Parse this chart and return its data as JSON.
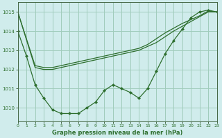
{
  "title": "Graphe pression niveau de la mer (hPa)",
  "background_color": "#d0ecec",
  "grid_color": "#a0ccbb",
  "line_color": "#2d6e2d",
  "xlim": [
    0,
    23
  ],
  "ylim": [
    1009.3,
    1015.5
  ],
  "yticks": [
    1010,
    1011,
    1012,
    1013,
    1014,
    1015
  ],
  "xticks": [
    0,
    1,
    2,
    3,
    4,
    5,
    6,
    7,
    8,
    9,
    10,
    11,
    12,
    13,
    14,
    15,
    16,
    17,
    18,
    19,
    20,
    21,
    22,
    23
  ],
  "series1_x": [
    0,
    1,
    2,
    3,
    4,
    5,
    6,
    7,
    8,
    9,
    10,
    11,
    12,
    13,
    14,
    15,
    16,
    17,
    18,
    19,
    20,
    21,
    22,
    23
  ],
  "series1_y": [
    1014.0,
    1012.7,
    1011.2,
    1010.5,
    1009.9,
    1009.7,
    1009.7,
    1009.7,
    1010.0,
    1010.3,
    1010.9,
    1011.2,
    1011.0,
    1010.8,
    1010.5,
    1011.0,
    1011.9,
    1012.8,
    1013.5,
    1014.1,
    1014.7,
    1015.0,
    1015.1,
    1015.0
  ],
  "series2_x": [
    0,
    2,
    3,
    4,
    5,
    6,
    7,
    8,
    9,
    10,
    11,
    12,
    13,
    14,
    15,
    16,
    17,
    18,
    19,
    20,
    21,
    22,
    23
  ],
  "series2_y": [
    1015.0,
    1012.1,
    1012.0,
    1012.0,
    1012.1,
    1012.2,
    1012.3,
    1012.4,
    1012.5,
    1012.6,
    1012.7,
    1012.8,
    1012.9,
    1013.0,
    1013.2,
    1013.4,
    1013.7,
    1014.0,
    1014.25,
    1014.5,
    1014.75,
    1015.0,
    1015.0
  ],
  "series3_x": [
    0,
    2,
    3,
    4,
    5,
    6,
    7,
    8,
    9,
    10,
    11,
    12,
    13,
    14,
    15,
    16,
    17,
    18,
    19,
    20,
    21,
    22,
    23
  ],
  "series3_y": [
    1015.0,
    1012.2,
    1012.1,
    1012.1,
    1012.2,
    1012.3,
    1012.4,
    1012.5,
    1012.6,
    1012.7,
    1012.8,
    1012.9,
    1013.0,
    1013.1,
    1013.3,
    1013.6,
    1013.9,
    1014.15,
    1014.4,
    1014.6,
    1014.8,
    1015.05,
    1015.0
  ]
}
